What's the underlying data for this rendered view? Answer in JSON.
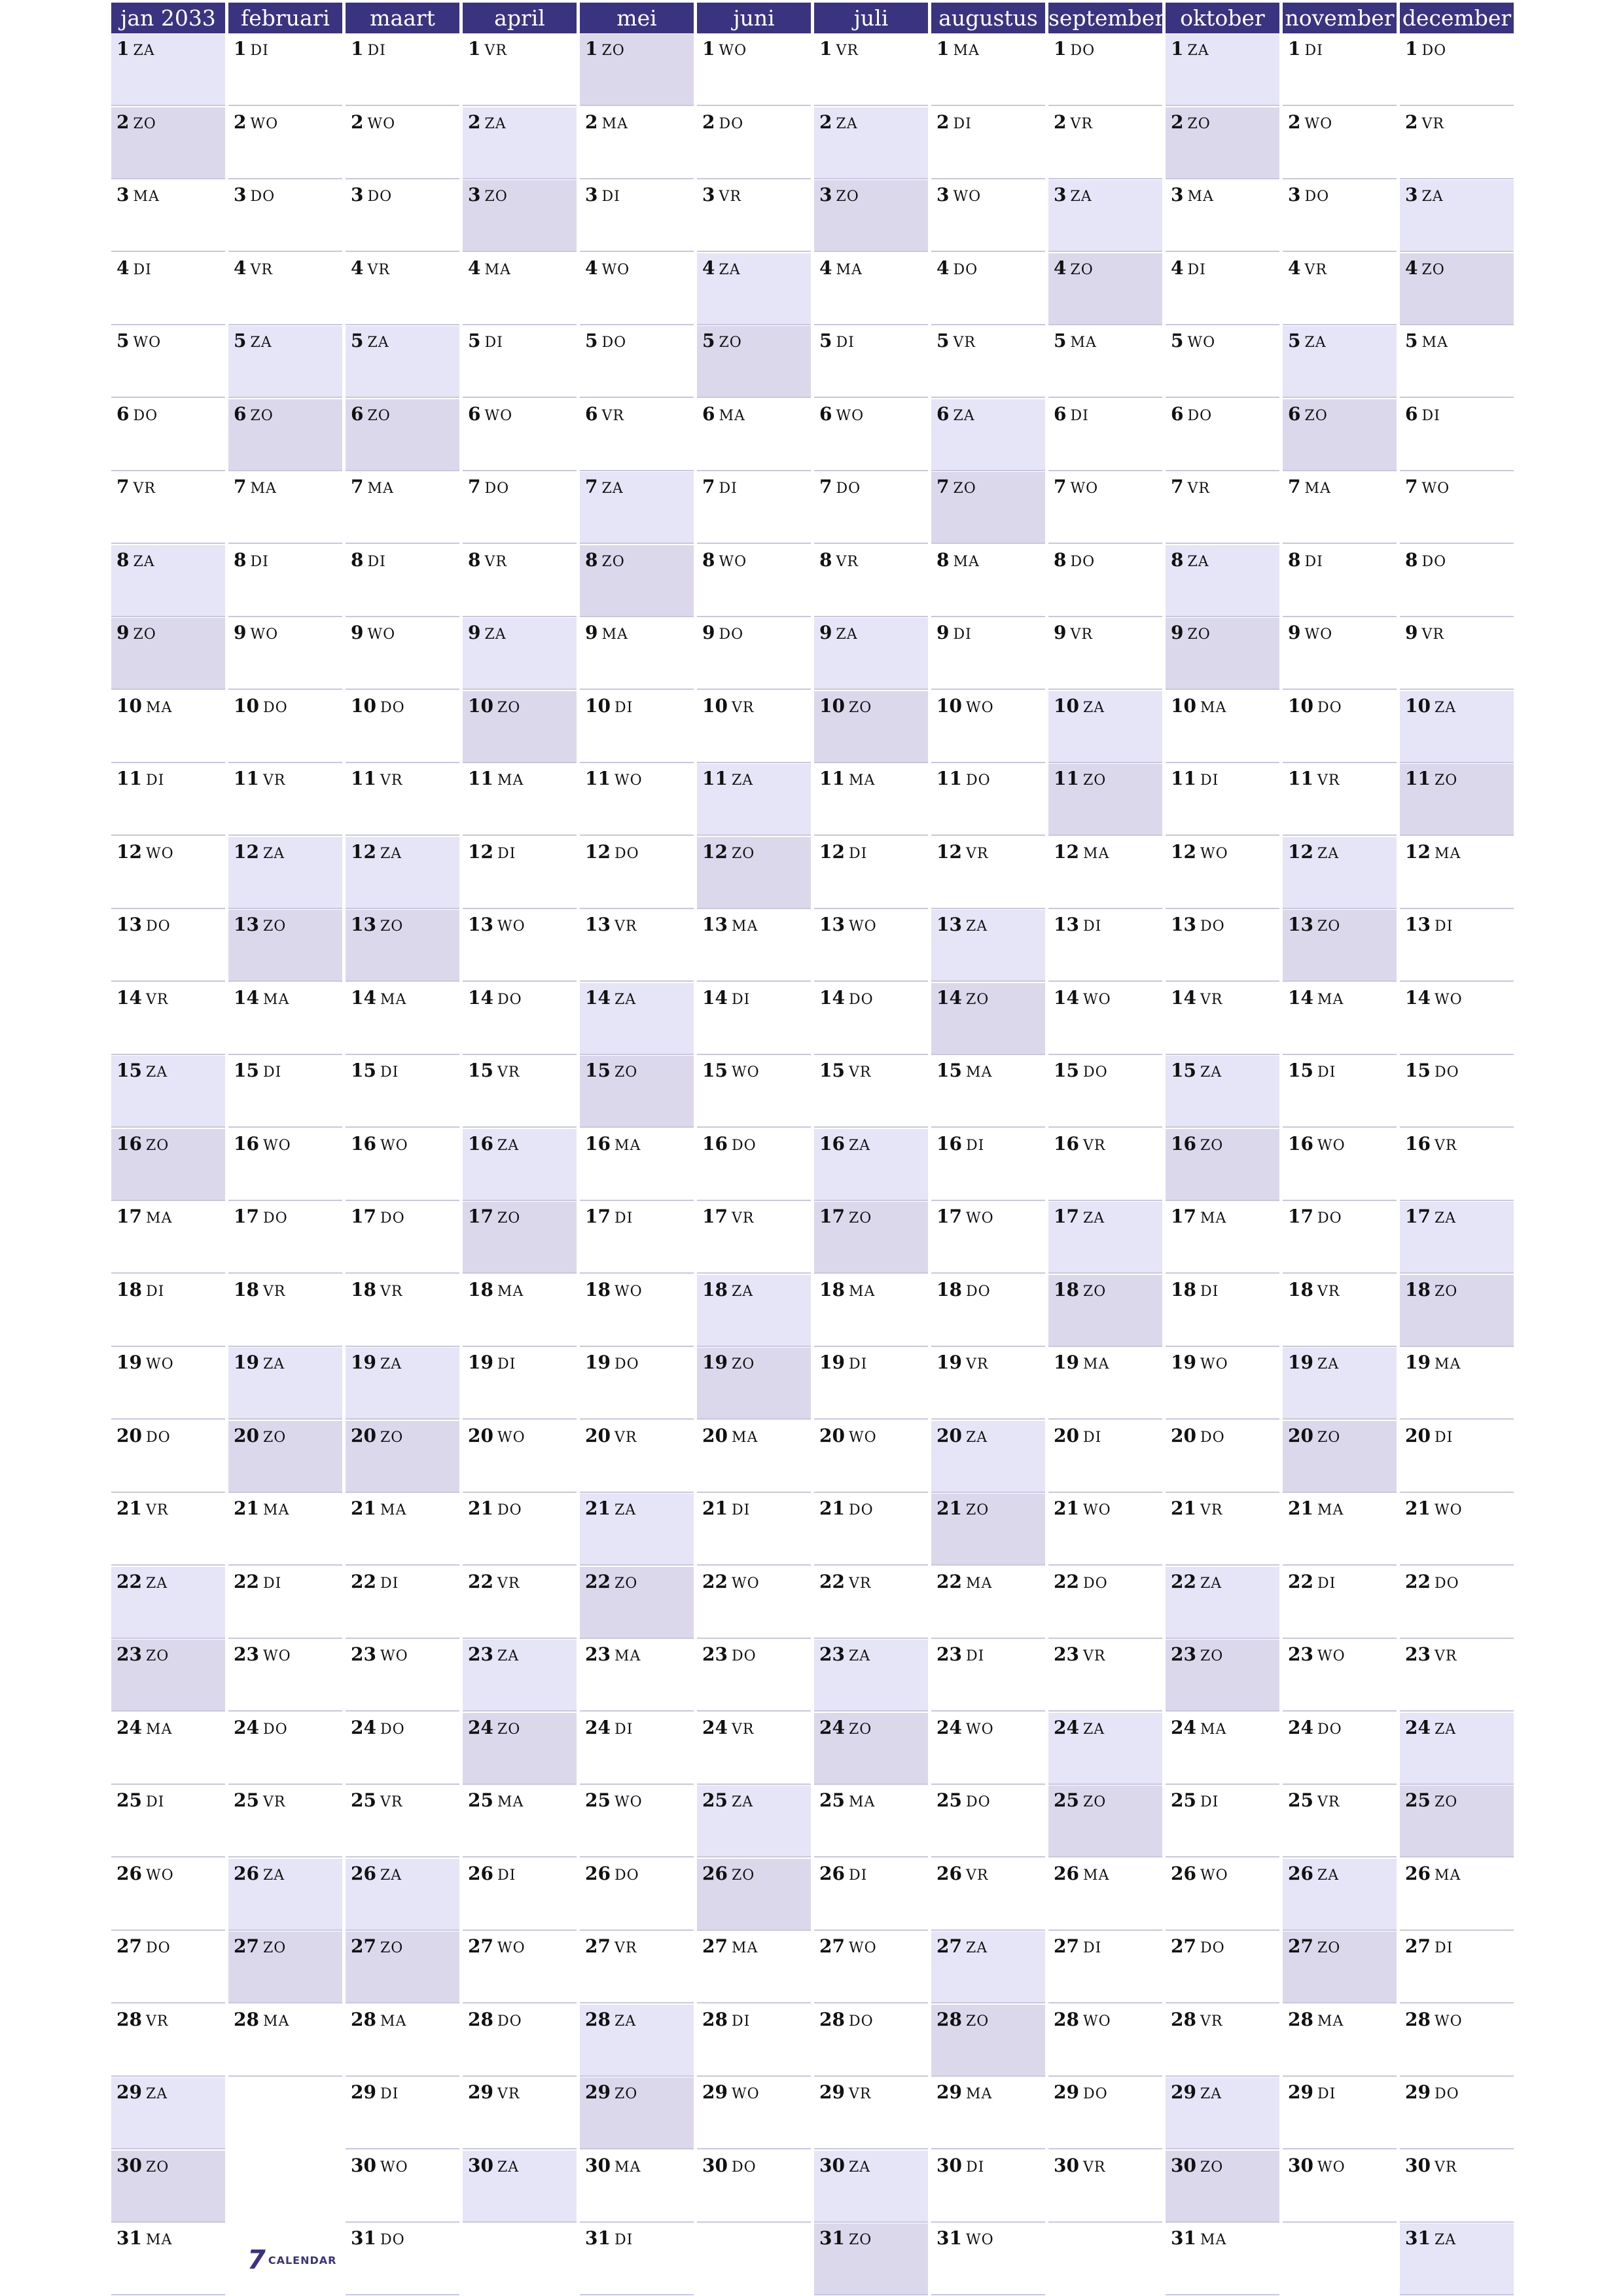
{
  "year": "2033",
  "weekday_abbrevs": [
    "MA",
    "DI",
    "WO",
    "DO",
    "VR",
    "ZA",
    "ZO"
  ],
  "first_weekday_index_per_month": [
    5,
    1,
    1,
    4,
    6,
    2,
    4,
    0,
    3,
    5,
    1,
    3
  ],
  "months": [
    {
      "name": "jan 2033",
      "days": 31
    },
    {
      "name": "februari",
      "days": 28
    },
    {
      "name": "maart",
      "days": 31
    },
    {
      "name": "april",
      "days": 30
    },
    {
      "name": "mei",
      "days": 31
    },
    {
      "name": "juni",
      "days": 30
    },
    {
      "name": "juli",
      "days": 31
    },
    {
      "name": "augustus",
      "days": 31
    },
    {
      "name": "september",
      "days": 30
    },
    {
      "name": "oktober",
      "days": 31
    },
    {
      "name": "november",
      "days": 30
    },
    {
      "name": "december",
      "days": 31
    }
  ],
  "colors": {
    "header_bg": "#3a3480",
    "header_text": "#ffffff",
    "saturday_bg": "#e6e5f7",
    "sunday_bg": "#dcd8ec",
    "row_line": "#c9c6e0"
  },
  "logo": {
    "mark": "7",
    "text": "CALENDAR"
  }
}
